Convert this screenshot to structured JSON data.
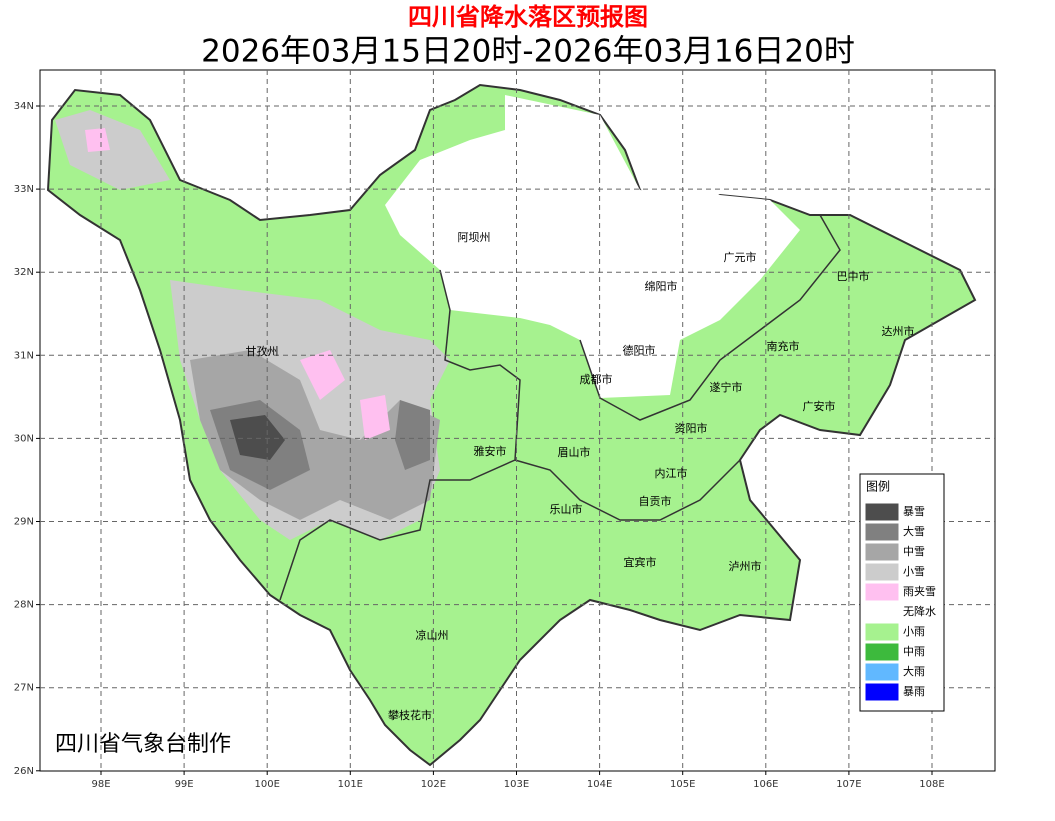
{
  "header": {
    "title": "四川省降水落区预报图",
    "subtitle": "2026年03月15日20时-2026年03月16日20时"
  },
  "axes": {
    "lat_labels": [
      "34N",
      "33N",
      "32N",
      "31N",
      "30N",
      "29N",
      "28N",
      "27N",
      "26N"
    ],
    "lon_labels": [
      "98E",
      "99E",
      "100E",
      "101E",
      "102E",
      "103E",
      "104E",
      "105E",
      "106E",
      "107E",
      "108E"
    ]
  },
  "cities": [
    "阿坝州",
    "广元市",
    "巴中市",
    "绵阳市",
    "达州市",
    "德阳市",
    "南充市",
    "甘孜州",
    "成都市",
    "遂宁市",
    "广安市",
    "资阳市",
    "雅安市",
    "眉山市",
    "内江市",
    "自贡市",
    "乐山市",
    "宜宾市",
    "泸州市",
    "凉山州",
    "攀枝花市"
  ],
  "legend": {
    "title": "图例",
    "items": [
      {
        "label": "暴雪",
        "color": "#4d4d4d"
      },
      {
        "label": "大雪",
        "color": "#808080"
      },
      {
        "label": "中雪",
        "color": "#a6a6a6"
      },
      {
        "label": "小雪",
        "color": "#cccccc"
      },
      {
        "label": "雨夹雪",
        "color": "#ffc0f0"
      },
      {
        "label": "无降水",
        "color": "#ffffff"
      },
      {
        "label": "小雨",
        "color": "#a6f28f"
      },
      {
        "label": "中雨",
        "color": "#3dba3d"
      },
      {
        "label": "大雨",
        "color": "#61b8ff"
      },
      {
        "label": "暴雨",
        "color": "#0000fe"
      }
    ]
  },
  "credit": "四川省气象台制作"
}
